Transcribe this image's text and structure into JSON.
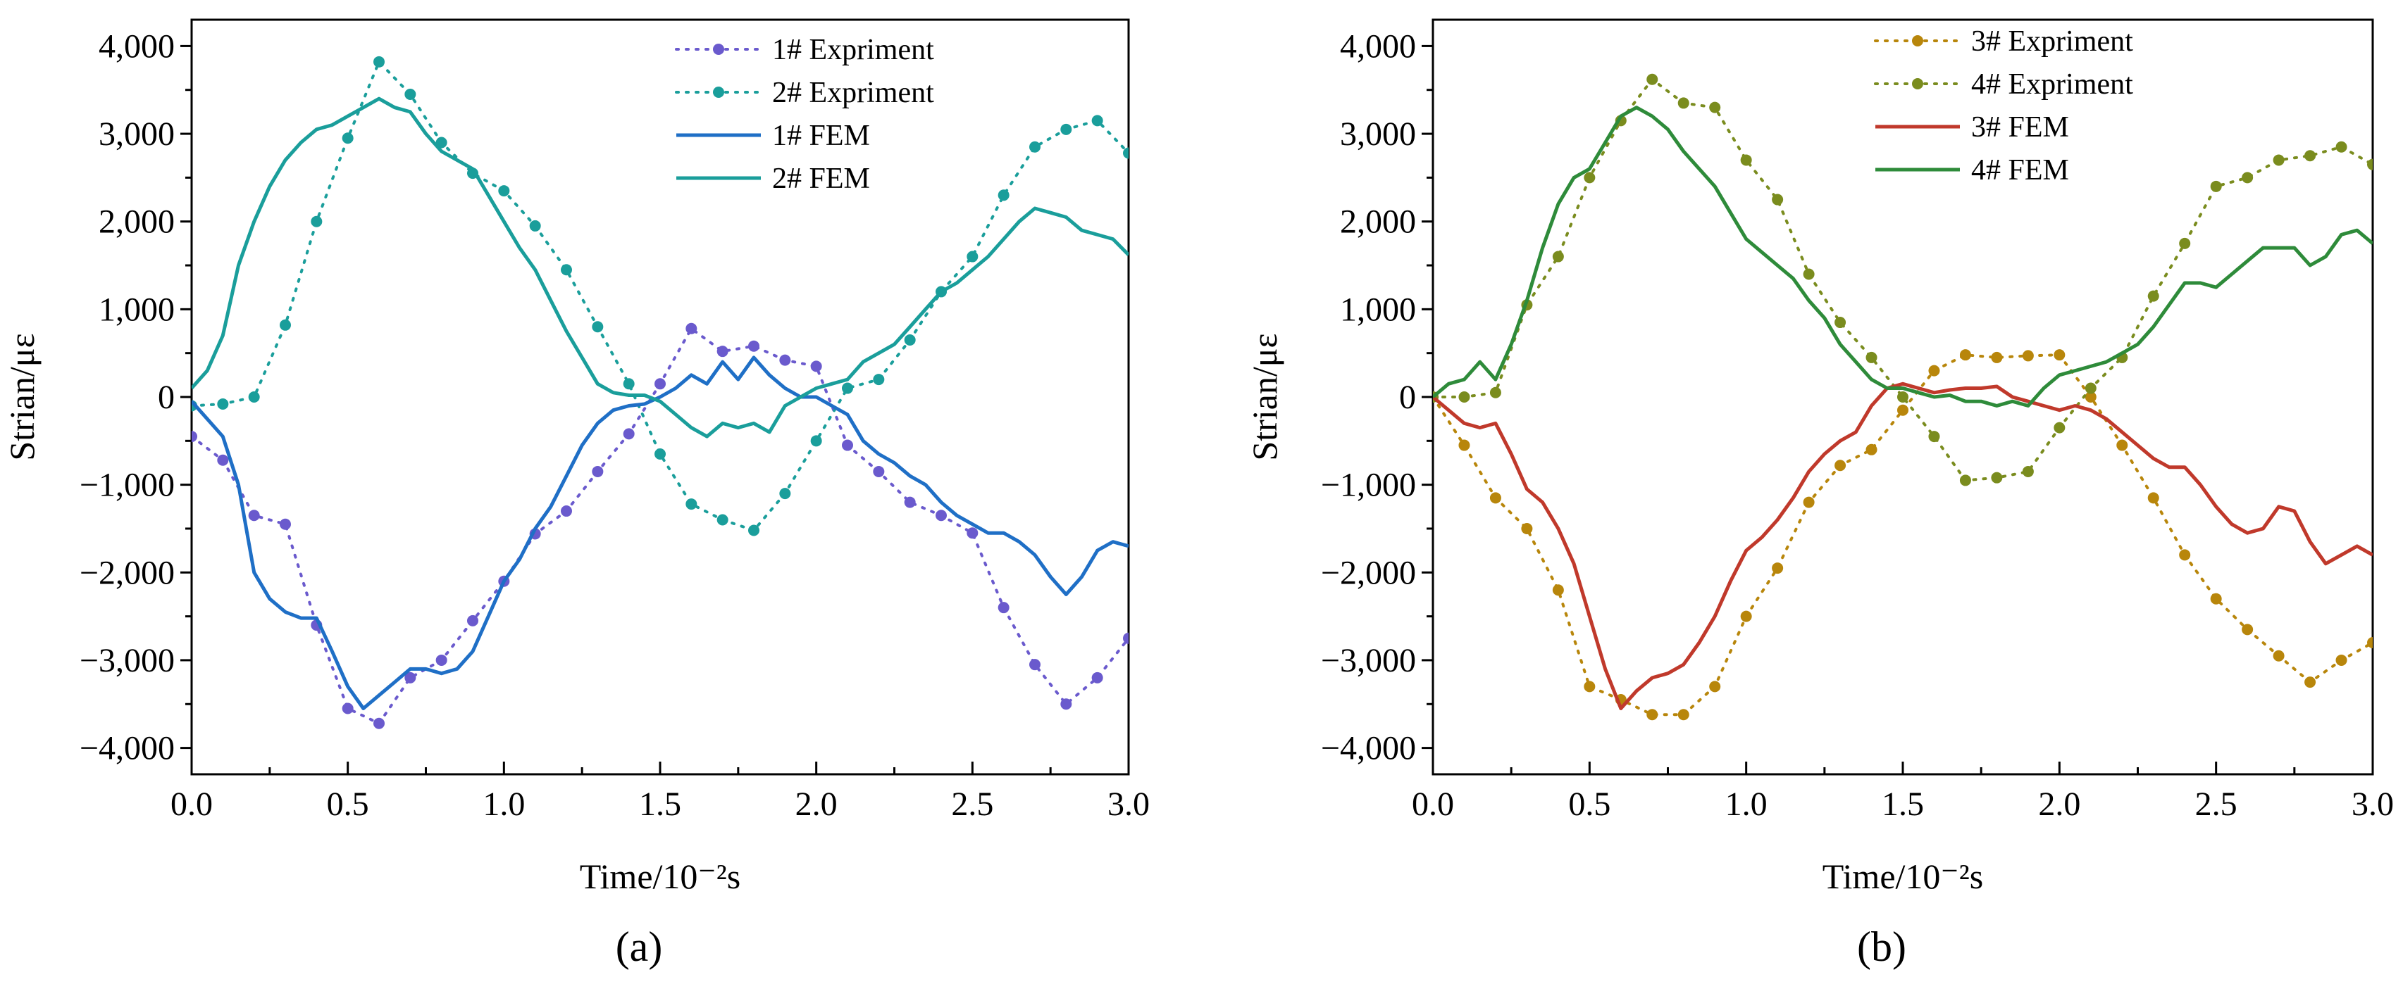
{
  "chart_data": [
    {
      "type": "line",
      "panel_label": "(a)",
      "xlabel": "Time/10⁻²s",
      "ylabel": "Strian/με",
      "xlim": [
        0,
        3
      ],
      "ylim": [
        -4300,
        4300
      ],
      "x_ticks": [
        0,
        0.5,
        1,
        1.5,
        2,
        2.5,
        3
      ],
      "x_tick_labels": [
        "0.0",
        "0.5",
        "1.0",
        "1.5",
        "2.0",
        "2.5",
        "3.0"
      ],
      "y_ticks": [
        -4000,
        -3000,
        -2000,
        -1000,
        0,
        1000,
        2000,
        3000,
        4000
      ],
      "y_tick_labels": [
        "−4,000",
        "−3,000",
        "−2,000",
        "−1,000",
        "0",
        "1,000",
        "2,000",
        "3,000",
        "4,000"
      ],
      "grid": false,
      "legend_position": "top-center",
      "series": [
        {
          "name": "1# Expriment",
          "style": "dotted-markers",
          "color": "#6a5acd",
          "x": [
            0,
            0.1,
            0.2,
            0.3,
            0.4,
            0.5,
            0.6,
            0.7,
            0.8,
            0.9,
            1.0,
            1.1,
            1.2,
            1.3,
            1.4,
            1.5,
            1.6,
            1.7,
            1.8,
            1.9,
            2.0,
            2.1,
            2.2,
            2.3,
            2.4,
            2.5,
            2.6,
            2.7,
            2.8,
            2.9,
            3.0
          ],
          "y": [
            -450,
            -720,
            -1350,
            -1450,
            -2600,
            -3550,
            -3720,
            -3200,
            -3000,
            -2550,
            -2100,
            -1560,
            -1300,
            -850,
            -420,
            150,
            780,
            520,
            580,
            420,
            350,
            -550,
            -850,
            -1200,
            -1350,
            -1550,
            -2400,
            -3050,
            -3500,
            -3200,
            -2750
          ]
        },
        {
          "name": "2# Expriment",
          "style": "dotted-markers",
          "color": "#1a9e9b",
          "x": [
            0,
            0.1,
            0.2,
            0.3,
            0.4,
            0.5,
            0.6,
            0.7,
            0.8,
            0.9,
            1.0,
            1.1,
            1.2,
            1.3,
            1.4,
            1.5,
            1.6,
            1.7,
            1.8,
            1.9,
            2.0,
            2.1,
            2.2,
            2.3,
            2.4,
            2.5,
            2.6,
            2.7,
            2.8,
            2.9,
            3.0
          ],
          "y": [
            -100,
            -80,
            0,
            820,
            2000,
            2950,
            3820,
            3450,
            2900,
            2550,
            2350,
            1950,
            1450,
            800,
            150,
            -650,
            -1220,
            -1400,
            -1520,
            -1100,
            -500,
            100,
            200,
            650,
            1200,
            1600,
            2300,
            2850,
            3050,
            3150,
            2780
          ]
        },
        {
          "name": "1# FEM",
          "style": "solid",
          "color": "#1f6fc6",
          "x": [
            0,
            0.05,
            0.1,
            0.15,
            0.2,
            0.25,
            0.3,
            0.35,
            0.4,
            0.45,
            0.5,
            0.55,
            0.6,
            0.65,
            0.7,
            0.75,
            0.8,
            0.85,
            0.9,
            0.95,
            1.0,
            1.05,
            1.1,
            1.15,
            1.2,
            1.25,
            1.3,
            1.35,
            1.4,
            1.45,
            1.5,
            1.55,
            1.6,
            1.65,
            1.7,
            1.75,
            1.8,
            1.85,
            1.9,
            1.95,
            2.0,
            2.05,
            2.1,
            2.15,
            2.2,
            2.25,
            2.3,
            2.35,
            2.4,
            2.45,
            2.5,
            2.55,
            2.6,
            2.65,
            2.7,
            2.75,
            2.8,
            2.85,
            2.9,
            2.95,
            3.0
          ],
          "y": [
            -50,
            -250,
            -450,
            -1000,
            -2000,
            -2300,
            -2450,
            -2520,
            -2520,
            -2900,
            -3300,
            -3550,
            -3400,
            -3250,
            -3100,
            -3100,
            -3150,
            -3100,
            -2900,
            -2500,
            -2100,
            -1850,
            -1500,
            -1250,
            -900,
            -550,
            -300,
            -150,
            -100,
            -80,
            0,
            100,
            250,
            150,
            400,
            200,
            450,
            250,
            100,
            0,
            0,
            -100,
            -200,
            -500,
            -650,
            -750,
            -900,
            -1000,
            -1200,
            -1350,
            -1450,
            -1550,
            -1550,
            -1650,
            -1800,
            -2050,
            -2250,
            -2050,
            -1750,
            -1650,
            -1700
          ]
        },
        {
          "name": "2# FEM",
          "style": "solid",
          "color": "#1a9e9b",
          "x": [
            0,
            0.05,
            0.1,
            0.15,
            0.2,
            0.25,
            0.3,
            0.35,
            0.4,
            0.45,
            0.5,
            0.55,
            0.6,
            0.65,
            0.7,
            0.75,
            0.8,
            0.85,
            0.9,
            0.95,
            1.0,
            1.05,
            1.1,
            1.15,
            1.2,
            1.25,
            1.3,
            1.35,
            1.4,
            1.45,
            1.5,
            1.55,
            1.6,
            1.65,
            1.7,
            1.75,
            1.8,
            1.85,
            1.9,
            1.95,
            2.0,
            2.05,
            2.1,
            2.15,
            2.2,
            2.25,
            2.3,
            2.35,
            2.4,
            2.45,
            2.5,
            2.55,
            2.6,
            2.65,
            2.7,
            2.75,
            2.8,
            2.85,
            2.9,
            2.95,
            3.0
          ],
          "y": [
            100,
            300,
            700,
            1500,
            2000,
            2400,
            2700,
            2900,
            3050,
            3100,
            3200,
            3300,
            3400,
            3300,
            3250,
            3000,
            2800,
            2700,
            2600,
            2300,
            2000,
            1700,
            1450,
            1100,
            750,
            450,
            150,
            50,
            20,
            20,
            -50,
            -200,
            -350,
            -450,
            -300,
            -350,
            -300,
            -400,
            -100,
            0,
            100,
            150,
            200,
            400,
            500,
            600,
            800,
            1000,
            1200,
            1300,
            1450,
            1600,
            1800,
            2000,
            2150,
            2100,
            2050,
            1900,
            1850,
            1800,
            1620
          ]
        }
      ]
    },
    {
      "type": "line",
      "panel_label": "(b)",
      "xlabel": "Time/10⁻²s",
      "ylabel": "Strian/με",
      "xlim": [
        0,
        3
      ],
      "ylim": [
        -4300,
        4300
      ],
      "x_ticks": [
        0,
        0.5,
        1,
        1.5,
        2,
        2.5,
        3
      ],
      "x_tick_labels": [
        "0.0",
        "0.5",
        "1.0",
        "1.5",
        "2.0",
        "2.5",
        "3.0"
      ],
      "y_ticks": [
        -4000,
        -3000,
        -2000,
        -1000,
        0,
        1000,
        2000,
        3000,
        4000
      ],
      "y_tick_labels": [
        "−4,000",
        "−3,000",
        "−2,000",
        "−1,000",
        "0",
        "1,000",
        "2,000",
        "3,000",
        "4,000"
      ],
      "grid": false,
      "legend_position": "top-center",
      "series": [
        {
          "name": "3# Expriment",
          "style": "dotted-markers",
          "color": "#b8860b",
          "x": [
            0,
            0.1,
            0.2,
            0.3,
            0.4,
            0.5,
            0.6,
            0.7,
            0.8,
            0.9,
            1.0,
            1.1,
            1.2,
            1.3,
            1.4,
            1.5,
            1.6,
            1.7,
            1.8,
            1.9,
            2.0,
            2.1,
            2.2,
            2.3,
            2.4,
            2.5,
            2.6,
            2.7,
            2.8,
            2.9,
            3.0
          ],
          "y": [
            0,
            -550,
            -1150,
            -1500,
            -2200,
            -3300,
            -3450,
            -3620,
            -3620,
            -3300,
            -2500,
            -1950,
            -1200,
            -780,
            -600,
            -150,
            300,
            480,
            450,
            470,
            480,
            0,
            -550,
            -1150,
            -1800,
            -2300,
            -2650,
            -2950,
            -3250,
            -3000,
            -2800
          ]
        },
        {
          "name": "4# Expriment",
          "style": "dotted-markers",
          "color": "#7a8c1e",
          "x": [
            0,
            0.1,
            0.2,
            0.3,
            0.4,
            0.5,
            0.6,
            0.7,
            0.8,
            0.9,
            1.0,
            1.1,
            1.2,
            1.3,
            1.4,
            1.5,
            1.6,
            1.7,
            1.8,
            1.9,
            2.0,
            2.1,
            2.2,
            2.3,
            2.4,
            2.5,
            2.6,
            2.7,
            2.8,
            2.9,
            3.0
          ],
          "y": [
            0,
            0,
            50,
            1050,
            1600,
            2500,
            3150,
            3620,
            3350,
            3300,
            2700,
            2250,
            1400,
            850,
            450,
            0,
            -450,
            -950,
            -920,
            -850,
            -350,
            100,
            450,
            1150,
            1750,
            2400,
            2500,
            2700,
            2750,
            2850,
            2650
          ]
        },
        {
          "name": "3# FEM",
          "style": "solid",
          "color": "#c0392b",
          "x": [
            0,
            0.05,
            0.1,
            0.15,
            0.2,
            0.25,
            0.3,
            0.35,
            0.4,
            0.45,
            0.5,
            0.55,
            0.6,
            0.65,
            0.7,
            0.75,
            0.8,
            0.85,
            0.9,
            0.95,
            1.0,
            1.05,
            1.1,
            1.15,
            1.2,
            1.25,
            1.3,
            1.35,
            1.4,
            1.45,
            1.5,
            1.55,
            1.6,
            1.65,
            1.7,
            1.75,
            1.8,
            1.85,
            1.9,
            1.95,
            2.0,
            2.05,
            2.1,
            2.15,
            2.2,
            2.25,
            2.3,
            2.35,
            2.4,
            2.45,
            2.5,
            2.55,
            2.6,
            2.65,
            2.7,
            2.75,
            2.8,
            2.85,
            2.9,
            2.95,
            3.0
          ],
          "y": [
            0,
            -150,
            -300,
            -350,
            -300,
            -650,
            -1050,
            -1200,
            -1500,
            -1900,
            -2500,
            -3100,
            -3550,
            -3350,
            -3200,
            -3150,
            -3050,
            -2800,
            -2500,
            -2100,
            -1750,
            -1600,
            -1400,
            -1150,
            -850,
            -650,
            -500,
            -400,
            -100,
            100,
            150,
            100,
            50,
            80,
            100,
            100,
            120,
            0,
            -50,
            -100,
            -150,
            -100,
            -150,
            -250,
            -400,
            -550,
            -700,
            -800,
            -800,
            -1000,
            -1250,
            -1450,
            -1550,
            -1500,
            -1250,
            -1300,
            -1650,
            -1900,
            -1800,
            -1700,
            -1800
          ]
        },
        {
          "name": "4# FEM",
          "style": "solid",
          "color": "#2e8b3a",
          "x": [
            0,
            0.05,
            0.1,
            0.15,
            0.2,
            0.25,
            0.3,
            0.35,
            0.4,
            0.45,
            0.5,
            0.55,
            0.6,
            0.65,
            0.7,
            0.75,
            0.8,
            0.85,
            0.9,
            0.95,
            1.0,
            1.05,
            1.1,
            1.15,
            1.2,
            1.25,
            1.3,
            1.35,
            1.4,
            1.45,
            1.5,
            1.55,
            1.6,
            1.65,
            1.7,
            1.75,
            1.8,
            1.85,
            1.9,
            1.95,
            2.0,
            2.05,
            2.1,
            2.15,
            2.2,
            2.25,
            2.3,
            2.35,
            2.4,
            2.45,
            2.5,
            2.55,
            2.6,
            2.65,
            2.7,
            2.75,
            2.8,
            2.85,
            2.9,
            2.95,
            3.0
          ],
          "y": [
            0,
            150,
            200,
            400,
            200,
            600,
            1100,
            1700,
            2200,
            2500,
            2600,
            2900,
            3200,
            3300,
            3200,
            3050,
            2800,
            2600,
            2400,
            2100,
            1800,
            1650,
            1500,
            1350,
            1100,
            900,
            600,
            400,
            200,
            100,
            100,
            50,
            0,
            20,
            -50,
            -50,
            -100,
            -50,
            -100,
            100,
            250,
            300,
            350,
            400,
            500,
            600,
            800,
            1050,
            1300,
            1300,
            1250,
            1400,
            1550,
            1700,
            1700,
            1700,
            1500,
            1600,
            1850,
            1900,
            1750
          ]
        }
      ]
    }
  ]
}
